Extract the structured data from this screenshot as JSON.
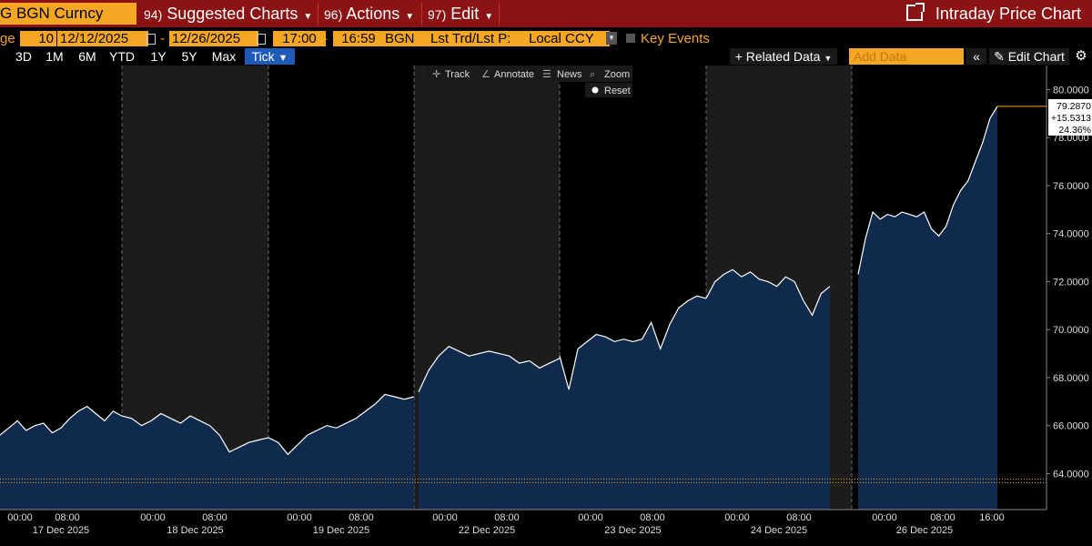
{
  "header": {
    "ticker": "G BGN Curncy",
    "menus": [
      {
        "num": "94)",
        "label": "Suggested Charts"
      },
      {
        "num": "96)",
        "label": "Actions"
      },
      {
        "num": "97)",
        "label": "Edit"
      }
    ],
    "window_title": "Intraday Price Chart"
  },
  "controls": {
    "range_label": "ge",
    "period": "10",
    "start_date": "12/12/2025",
    "dash": "-",
    "end_date": "12/26/2025",
    "start_time": "17:00",
    "end_time": "16:59",
    "source": "BGN",
    "field": "Lst Trd/Lst P:",
    "currency": "Local CCY",
    "key_events": "Key Events"
  },
  "toolbar": {
    "ranges": [
      "3D",
      "1M",
      "6M",
      "YTD",
      "1Y",
      "5Y",
      "Max"
    ],
    "selected": "Tick",
    "related_data": "+ Related Data",
    "add_data_placeholder": "Add Data",
    "collapse": "«",
    "edit_chart": "Edit Chart"
  },
  "chart_tools": {
    "items": [
      "Track",
      "Annotate",
      "News",
      "Zoom"
    ],
    "reset": "Reset"
  },
  "chart_data": {
    "type": "area",
    "colors": {
      "fill": "#0f2a4d",
      "line": "#ffffff",
      "alt_band": "#1c1c1c",
      "ref_line": "#f5a623"
    },
    "ylim": [
      62.5,
      80.7
    ],
    "yticks": [
      "80.0000",
      "78.0000",
      "76.0000",
      "74.0000",
      "72.0000",
      "70.0000",
      "68.0000",
      "66.0000",
      "64.0000"
    ],
    "ytick_values": [
      80,
      78,
      76,
      74,
      72,
      70,
      68,
      66,
      64
    ],
    "reference_line": 63.7,
    "last_value": {
      "price": "79.2870",
      "change": "+15.5313",
      "pct": "24.36%"
    },
    "sessions": [
      {
        "label": "17 Dec 2025",
        "times": [
          "00:00",
          "08:00"
        ],
        "points": [
          65.6,
          65.9,
          66.2,
          65.8,
          66.0,
          66.1,
          65.7,
          65.9,
          66.3,
          66.6,
          66.8,
          66.5,
          66.2,
          66.6,
          66.4
        ],
        "shaded": false
      },
      {
        "label": "18 Dec 2025",
        "times": [
          "00:00",
          "08:00"
        ],
        "points": [
          66.4,
          66.3,
          66.0,
          66.2,
          66.5,
          66.3,
          66.1,
          66.4,
          66.2,
          66.0,
          65.6,
          64.9,
          65.1,
          65.3,
          65.4,
          65.5
        ],
        "shaded": true
      },
      {
        "label": "19 Dec 2025",
        "times": [
          "00:00",
          "08:00"
        ],
        "points": [
          65.5,
          65.3,
          64.8,
          65.2,
          65.6,
          65.8,
          66.0,
          65.9,
          66.1,
          66.3,
          66.6,
          66.9,
          67.3,
          67.2,
          67.1,
          67.2
        ],
        "shaded": false
      },
      {
        "label": "22 Dec 2025",
        "times": [
          "00:00",
          "08:00"
        ],
        "points": [
          67.4,
          68.3,
          68.9,
          69.3,
          69.1,
          68.9,
          69.0,
          69.1,
          69.0,
          68.9,
          68.6,
          68.7,
          68.4,
          68.6,
          68.8
        ],
        "shaded": true
      },
      {
        "label": "23 Dec 2025",
        "times": [
          "00:00",
          "08:00"
        ],
        "points": [
          68.9,
          67.5,
          69.2,
          69.5,
          69.8,
          69.7,
          69.5,
          69.6,
          69.5,
          69.6,
          70.3,
          69.2,
          70.2,
          70.9,
          71.2,
          71.4,
          71.3
        ],
        "shaded": false
      },
      {
        "label": "24 Dec 2025",
        "times": [
          "00:00",
          "08:00"
        ],
        "points": [
          71.3,
          72.0,
          72.3,
          72.5,
          72.2,
          72.4,
          72.1,
          72.0,
          71.8,
          72.2,
          72.0,
          71.2,
          70.6,
          71.5,
          71.8
        ],
        "shaded": true
      },
      {
        "label": "26 Dec 2025",
        "times": [
          "00:00",
          "08:00",
          "16:00"
        ],
        "points": [
          72.3,
          73.8,
          74.9,
          74.6,
          74.8,
          74.7,
          74.9,
          74.8,
          74.7,
          74.9,
          74.2,
          73.9,
          74.3,
          75.2,
          75.8,
          76.2,
          77.0,
          77.8,
          78.8,
          79.3
        ],
        "shaded": false
      }
    ]
  }
}
